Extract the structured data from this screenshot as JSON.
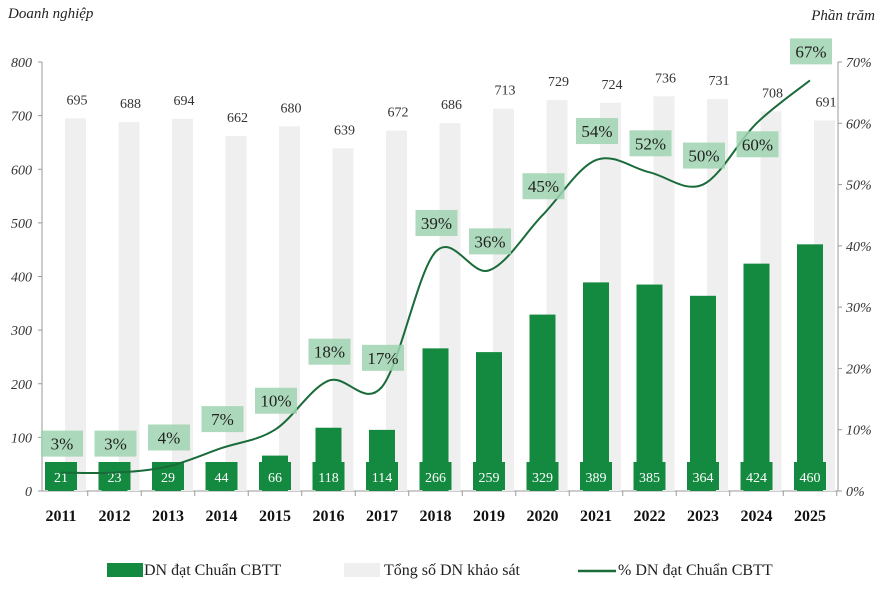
{
  "chart_data": {
    "type": "bar+line",
    "left_axis_title": "Doanh nghiệp",
    "right_axis_title": "Phần trăm",
    "categories": [
      "2011",
      "2012",
      "2013",
      "2014",
      "2015",
      "2016",
      "2017",
      "2018",
      "2019",
      "2020",
      "2021",
      "2022",
      "2023",
      "2024",
      "2025"
    ],
    "ylim": [
      0,
      800
    ],
    "yticks": [
      "0",
      "100",
      "200",
      "300",
      "400",
      "500",
      "600",
      "700",
      "800"
    ],
    "y2lim": [
      0,
      70
    ],
    "y2ticks": [
      "0%",
      "10%",
      "20%",
      "30%",
      "40%",
      "50%",
      "60%",
      "70%"
    ],
    "series": [
      {
        "name": "DN đạt Chuẩn CBTT",
        "type": "bar",
        "color": "#138a3f",
        "values": [
          21,
          23,
          29,
          44,
          66,
          118,
          114,
          266,
          259,
          329,
          389,
          385,
          364,
          424,
          460
        ]
      },
      {
        "name": "Tổng số DN khảo sát",
        "type": "bar",
        "color": "#efefef",
        "values": [
          695,
          688,
          694,
          662,
          680,
          639,
          672,
          686,
          713,
          729,
          724,
          736,
          731,
          708,
          691
        ]
      },
      {
        "name": "% DN đạt Chuẩn CBTT",
        "type": "line",
        "axis": "right",
        "color": "#1a6b3a",
        "label_bg": "#9fd3b0",
        "values": [
          3,
          3,
          4,
          7,
          10,
          18,
          17,
          39,
          36,
          45,
          54,
          52,
          50,
          60,
          67
        ]
      }
    ],
    "grid": false,
    "legend": "bottom"
  }
}
